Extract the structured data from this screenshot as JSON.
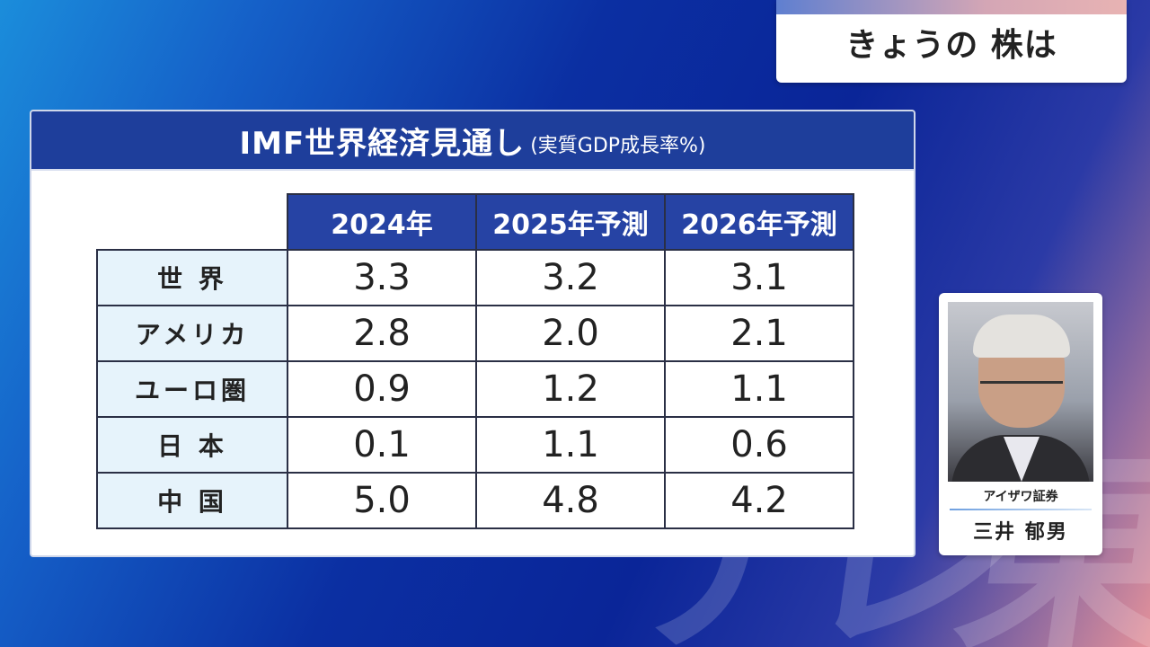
{
  "topic": {
    "title": "きょうの 株は"
  },
  "panel": {
    "title": "IMF世界経済見通し",
    "subtitle": "(実質GDP成長率%)"
  },
  "table": {
    "headers": [
      "2024年",
      "2025年予測",
      "2026年予測"
    ],
    "rows": [
      {
        "label": "世 界",
        "values": [
          "3.3",
          "3.2",
          "3.1"
        ]
      },
      {
        "label": "アメリカ",
        "values": [
          "2.8",
          "2.0",
          "2.1"
        ]
      },
      {
        "label": "ユーロ圏",
        "values": [
          "0.9",
          "1.2",
          "1.1"
        ]
      },
      {
        "label": "日 本",
        "values": [
          "0.1",
          "1.1",
          "0.6"
        ]
      },
      {
        "label": "中 国",
        "values": [
          "5.0",
          "4.8",
          "4.2"
        ]
      }
    ]
  },
  "guest": {
    "affiliation": "アイザワ証券",
    "name": "三井 郁男"
  },
  "watermark": {
    "chars": [
      "テ",
      "レ",
      "東"
    ]
  },
  "colors": {
    "header_blue": "#1e3e9b",
    "column_header_blue": "#2643a4",
    "row_header_bg": "#e6f3fb"
  }
}
